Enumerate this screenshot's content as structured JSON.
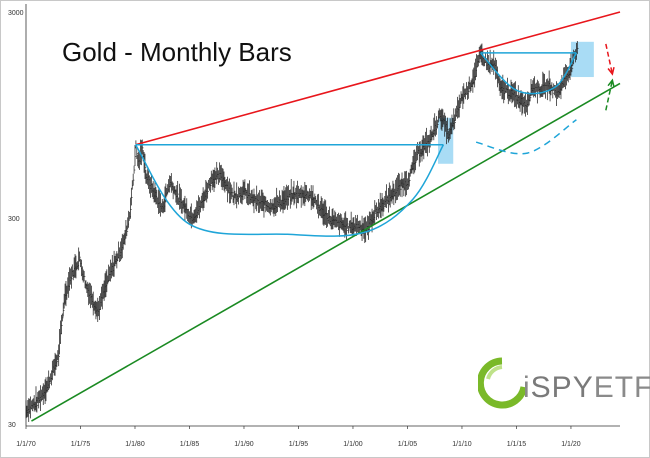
{
  "chart_data": {
    "type": "bar",
    "title": "Gold - Monthly Bars",
    "scale": "log",
    "ylim": [
      30,
      3000
    ],
    "y_ticks": [
      30,
      300,
      3000
    ],
    "y_tick_labels": [
      "30",
      "300",
      "3000"
    ],
    "x_ticks": [
      "1/1/70",
      "1/1/75",
      "1/1/80",
      "1/1/85",
      "1/1/90",
      "1/1/95",
      "1/1/00",
      "1/1/05",
      "1/1/10",
      "1/1/15",
      "1/1/20"
    ],
    "x_range": [
      1970.0,
      2024.5
    ],
    "grid": false,
    "series": [
      {
        "x": [
          1970.0,
          1971.0,
          1972.0,
          1973.0,
          1973.5,
          1974.0,
          1974.9,
          1975.5,
          1976.6,
          1977.5,
          1978.5,
          1979.0,
          1979.5,
          1979.9,
          1980.05,
          1980.3,
          1980.7,
          1981.0,
          1981.5,
          1982.5,
          1983.2,
          1984.0,
          1985.2,
          1986.0,
          1987.0,
          1987.9,
          1989.0,
          1990.0,
          1991.0,
          1992.5,
          1993.5,
          1994.5,
          1996.0,
          1997.0,
          1998.0,
          1999.5,
          2000.5,
          2001.2,
          2002.0,
          2003.0,
          2004.0,
          2005.0,
          2006.0,
          2007.0,
          2008.0,
          2008.8,
          2009.5,
          2010.0,
          2010.5,
          2011.0,
          2011.7,
          2012.5,
          2013.0,
          2013.5,
          2014.0,
          2015.0,
          2015.9,
          2016.5,
          2017.0,
          2018.0,
          2018.8,
          2019.5,
          2020.0,
          2020.6
        ],
        "values": [
          35,
          38,
          46,
          65,
          120,
          150,
          190,
          140,
          105,
          150,
          200,
          230,
          310,
          500,
          680,
          550,
          650,
          480,
          420,
          330,
          450,
          370,
          300,
          340,
          460,
          480,
          380,
          400,
          360,
          340,
          360,
          385,
          390,
          330,
          290,
          270,
          275,
          260,
          315,
          360,
          410,
          450,
          620,
          700,
          950,
          750,
          950,
          1150,
          1250,
          1400,
          1850,
          1650,
          1650,
          1250,
          1250,
          1150,
          1060,
          1300,
          1250,
          1300,
          1200,
          1450,
          1600,
          1950
        ]
      }
    ],
    "annotations": {
      "resistance_line": {
        "color": "#e8161c",
        "from": [
          1980.05,
          680
        ],
        "to": [
          2024.5,
          3000
        ]
      },
      "support_line": {
        "color": "#1a8a22",
        "from": [
          1970.5,
          31
        ],
        "to": [
          2024.5,
          1350
        ]
      },
      "horizontal_lines": [
        {
          "color": "#1fa5d8",
          "from": [
            1980.05,
            680
          ],
          "to": [
            2008.3,
            680
          ]
        },
        {
          "color": "#1fa5d8",
          "from": [
            2011.7,
            1900
          ],
          "to": [
            2020.5,
            1900
          ]
        }
      ],
      "cup_curves": [
        {
          "color": "#1fa5d8",
          "style": "solid",
          "points": [
            [
              1980.05,
              680
            ],
            [
              1985.0,
              280
            ],
            [
              1994.0,
              250
            ],
            [
              2001.0,
              255
            ],
            [
              2005.5,
              370
            ],
            [
              2008.3,
              680
            ]
          ]
        },
        {
          "color": "#1fa5d8",
          "style": "solid",
          "points": [
            [
              2011.7,
              1900
            ],
            [
              2015.0,
              1250
            ],
            [
              2018.5,
              1290
            ],
            [
              2020.5,
              1900
            ]
          ]
        },
        {
          "color": "#1fa5d8",
          "style": "dashed",
          "points": [
            [
              2011.3,
              700
            ],
            [
              2016.0,
              620
            ],
            [
              2020.5,
              900
            ]
          ]
        }
      ],
      "highlight_boxes": [
        {
          "color": "#a9dcf5",
          "x": [
            2007.8,
            2009.2
          ],
          "y": [
            550,
            920
          ]
        },
        {
          "color": "#a9dcf5",
          "x": [
            2020.0,
            2022.1
          ],
          "y": [
            1450,
            2150
          ]
        }
      ],
      "arrows": [
        {
          "color": "#e8161c",
          "style": "dashed",
          "from": [
            2023.2,
            2100
          ],
          "to": [
            2023.8,
            1500
          ]
        },
        {
          "color": "#1a8a22",
          "style": "dashed",
          "from": [
            2023.2,
            1000
          ],
          "to": [
            2023.8,
            1400
          ]
        }
      ]
    }
  },
  "logo": {
    "prefix": "i",
    "middle": "SPY",
    "suffix": "ETF",
    "colors": {
      "green": "#7ab929",
      "grey": "#8a8a8a"
    }
  }
}
